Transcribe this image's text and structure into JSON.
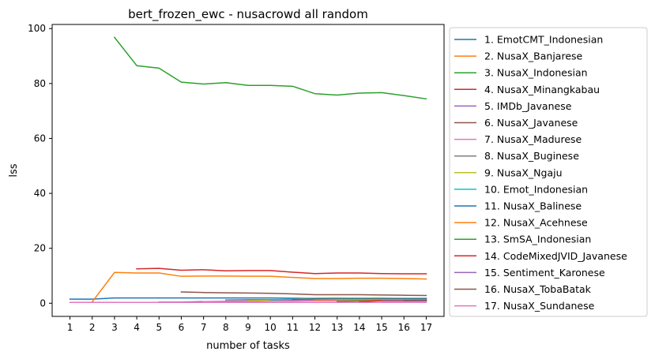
{
  "chart_data": {
    "type": "line",
    "title": "bert_frozen_ewc - nusacrowd all random",
    "xlabel": "number of tasks",
    "ylabel": "lss",
    "x": [
      1,
      2,
      3,
      4,
      5,
      6,
      7,
      8,
      9,
      10,
      11,
      12,
      13,
      14,
      15,
      16,
      17
    ],
    "xticks": [
      "1",
      "2",
      "3",
      "4",
      "5",
      "6",
      "7",
      "8",
      "9",
      "10",
      "11",
      "12",
      "13",
      "14",
      "15",
      "16",
      "17"
    ],
    "yticks": [
      0,
      20,
      40,
      60,
      80,
      100
    ],
    "ylim": [
      -4.8,
      101.5
    ],
    "xlim": [
      0.2,
      17.8
    ],
    "grid": false,
    "legend_position": "outside-right",
    "series": [
      {
        "name": "1. EmotCMT_Indonesian",
        "color": "#1f77b4",
        "values": [
          1.5,
          1.5,
          1.9,
          1.9,
          1.9,
          1.9,
          1.9,
          1.9,
          1.9,
          1.9,
          1.8,
          1.8,
          1.8,
          1.8,
          1.8,
          1.8,
          1.8
        ]
      },
      {
        "name": "2. NusaX_Banjarese",
        "color": "#ff7f0e",
        "values": [
          null,
          0.5,
          11.2,
          11.0,
          11.0,
          9.8,
          9.9,
          9.9,
          9.8,
          9.8,
          9.4,
          9.0,
          9.0,
          9.1,
          9.1,
          9.0,
          8.8
        ]
      },
      {
        "name": "3. NusaX_Indonesian",
        "color": "#2ca02c",
        "values": [
          null,
          null,
          96.8,
          86.5,
          85.6,
          80.5,
          79.8,
          80.3,
          79.3,
          79.3,
          79.0,
          76.3,
          75.8,
          76.5,
          76.7,
          75.6,
          74.4
        ]
      },
      {
        "name": "4. NusaX_Minangkabau",
        "color": "#d62728",
        "values": [
          null,
          null,
          null,
          12.5,
          12.7,
          12.0,
          12.2,
          11.8,
          11.9,
          11.9,
          11.3,
          10.8,
          11.0,
          11.0,
          10.8,
          10.7,
          10.7
        ]
      },
      {
        "name": "5. IMDb_Javanese",
        "color": "#9467bd",
        "values": [
          null,
          null,
          null,
          null,
          0.4,
          0.4,
          0.6,
          0.7,
          0.8,
          0.9,
          0.9,
          1.0,
          1.0,
          1.0,
          1.1,
          1.1,
          1.1
        ]
      },
      {
        "name": "6. NusaX_Javanese",
        "color": "#8c564b",
        "values": [
          null,
          null,
          null,
          null,
          null,
          4.1,
          3.9,
          3.8,
          3.7,
          3.6,
          3.4,
          3.1,
          3.1,
          3.1,
          3.0,
          2.9,
          2.8
        ]
      },
      {
        "name": "7. NusaX_Madurese",
        "color": "#e377c2",
        "values": [
          null,
          null,
          null,
          null,
          null,
          null,
          0.6,
          0.6,
          0.7,
          0.8,
          0.8,
          0.9,
          0.9,
          0.9,
          1.0,
          1.0,
          1.0
        ]
      },
      {
        "name": "8. NusaX_Buginese",
        "color": "#7f7f7f",
        "values": [
          null,
          null,
          null,
          null,
          null,
          null,
          null,
          1.2,
          1.3,
          1.3,
          1.3,
          1.4,
          1.4,
          1.4,
          1.4,
          1.4,
          1.4
        ]
      },
      {
        "name": "9. NusaX_Ngaju",
        "color": "#bcbd22",
        "values": [
          null,
          null,
          null,
          null,
          null,
          null,
          null,
          null,
          0.9,
          1.1,
          1.5,
          1.9,
          2.0,
          1.9,
          2.0,
          1.8,
          1.8
        ]
      },
      {
        "name": "10. Emot_Indonesian",
        "color": "#17becf",
        "values": [
          null,
          null,
          null,
          null,
          null,
          null,
          null,
          null,
          null,
          1.2,
          1.5,
          1.5,
          1.4,
          1.5,
          1.5,
          1.4,
          1.4
        ]
      },
      {
        "name": "11. NusaX_Balinese",
        "color": "#1f77b4",
        "values": [
          null,
          null,
          null,
          null,
          null,
          null,
          null,
          null,
          null,
          null,
          1.4,
          1.6,
          1.6,
          1.6,
          1.6,
          1.6,
          1.6
        ]
      },
      {
        "name": "12. NusaX_Acehnese",
        "color": "#ff7f0e",
        "values": [
          null,
          null,
          null,
          null,
          null,
          null,
          null,
          null,
          null,
          null,
          null,
          1.2,
          1.3,
          1.3,
          1.3,
          1.3,
          1.3
        ]
      },
      {
        "name": "13. SmSA_Indonesian",
        "color": "#2ca02c",
        "values": [
          null,
          null,
          null,
          null,
          null,
          null,
          null,
          null,
          null,
          null,
          null,
          null,
          0.7,
          0.8,
          0.9,
          0.9,
          0.9
        ]
      },
      {
        "name": "14. CodeMixedJVID_Javanese",
        "color": "#d62728",
        "values": [
          null,
          null,
          null,
          null,
          null,
          null,
          null,
          null,
          null,
          null,
          null,
          null,
          null,
          0.6,
          0.9,
          0.9,
          0.9
        ]
      },
      {
        "name": "15. Sentiment_Karonese",
        "color": "#9467bd",
        "values": [
          null,
          null,
          null,
          null,
          null,
          null,
          null,
          null,
          null,
          null,
          null,
          null,
          null,
          null,
          0.8,
          0.8,
          0.8
        ]
      },
      {
        "name": "16. NusaX_TobaBatak",
        "color": "#8c564b",
        "values": [
          null,
          null,
          null,
          null,
          null,
          null,
          null,
          null,
          null,
          null,
          null,
          null,
          null,
          null,
          null,
          1.0,
          1.1
        ]
      },
      {
        "name": "17. NusaX_Sundanese",
        "color": "#e377c2",
        "values": [
          0.3,
          0.3,
          0.3,
          0.3,
          0.3,
          0.3,
          0.3,
          0.3,
          0.3,
          0.3,
          0.3,
          0.3,
          0.3,
          0.3,
          0.3,
          0.3,
          0.3
        ]
      }
    ]
  }
}
